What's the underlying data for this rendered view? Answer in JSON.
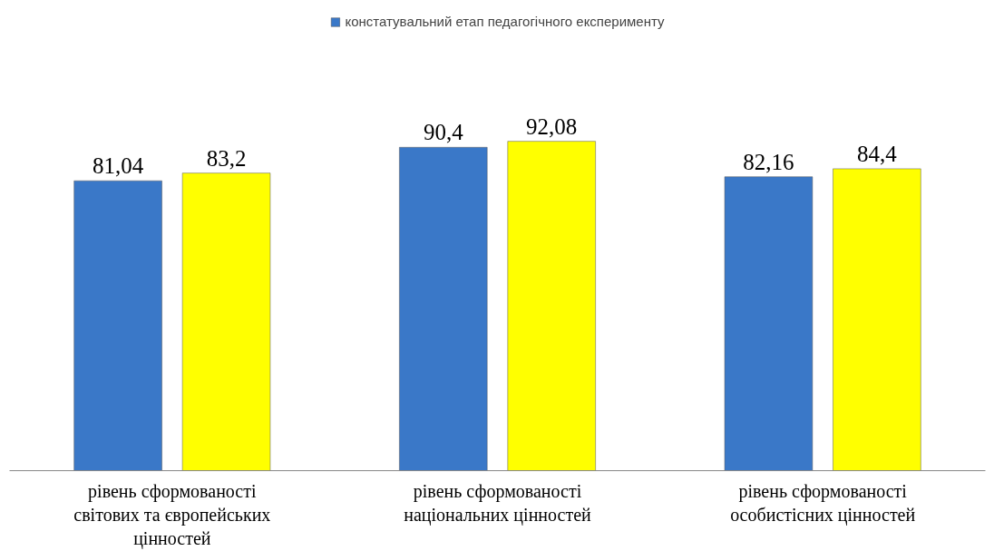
{
  "chart_data": {
    "type": "bar",
    "categories": [
      "рівень сформованості світових та європейських цінностей",
      "рівень сформованості національних цінностей",
      "рівень сформованості особистісних цінностей"
    ],
    "series": [
      {
        "name": "констатувальний етап педагогічного експерименту",
        "color": "#3a78c8",
        "values": [
          81.04,
          90.4,
          82.16
        ],
        "value_labels": [
          "81,04",
          "90,4",
          "82,16"
        ]
      },
      {
        "color": "#ffff00",
        "values": [
          83.2,
          92.08,
          84.4
        ],
        "value_labels": [
          "83,2",
          "92,08",
          "84,4"
        ]
      }
    ],
    "legend": "top",
    "grid": false
  }
}
